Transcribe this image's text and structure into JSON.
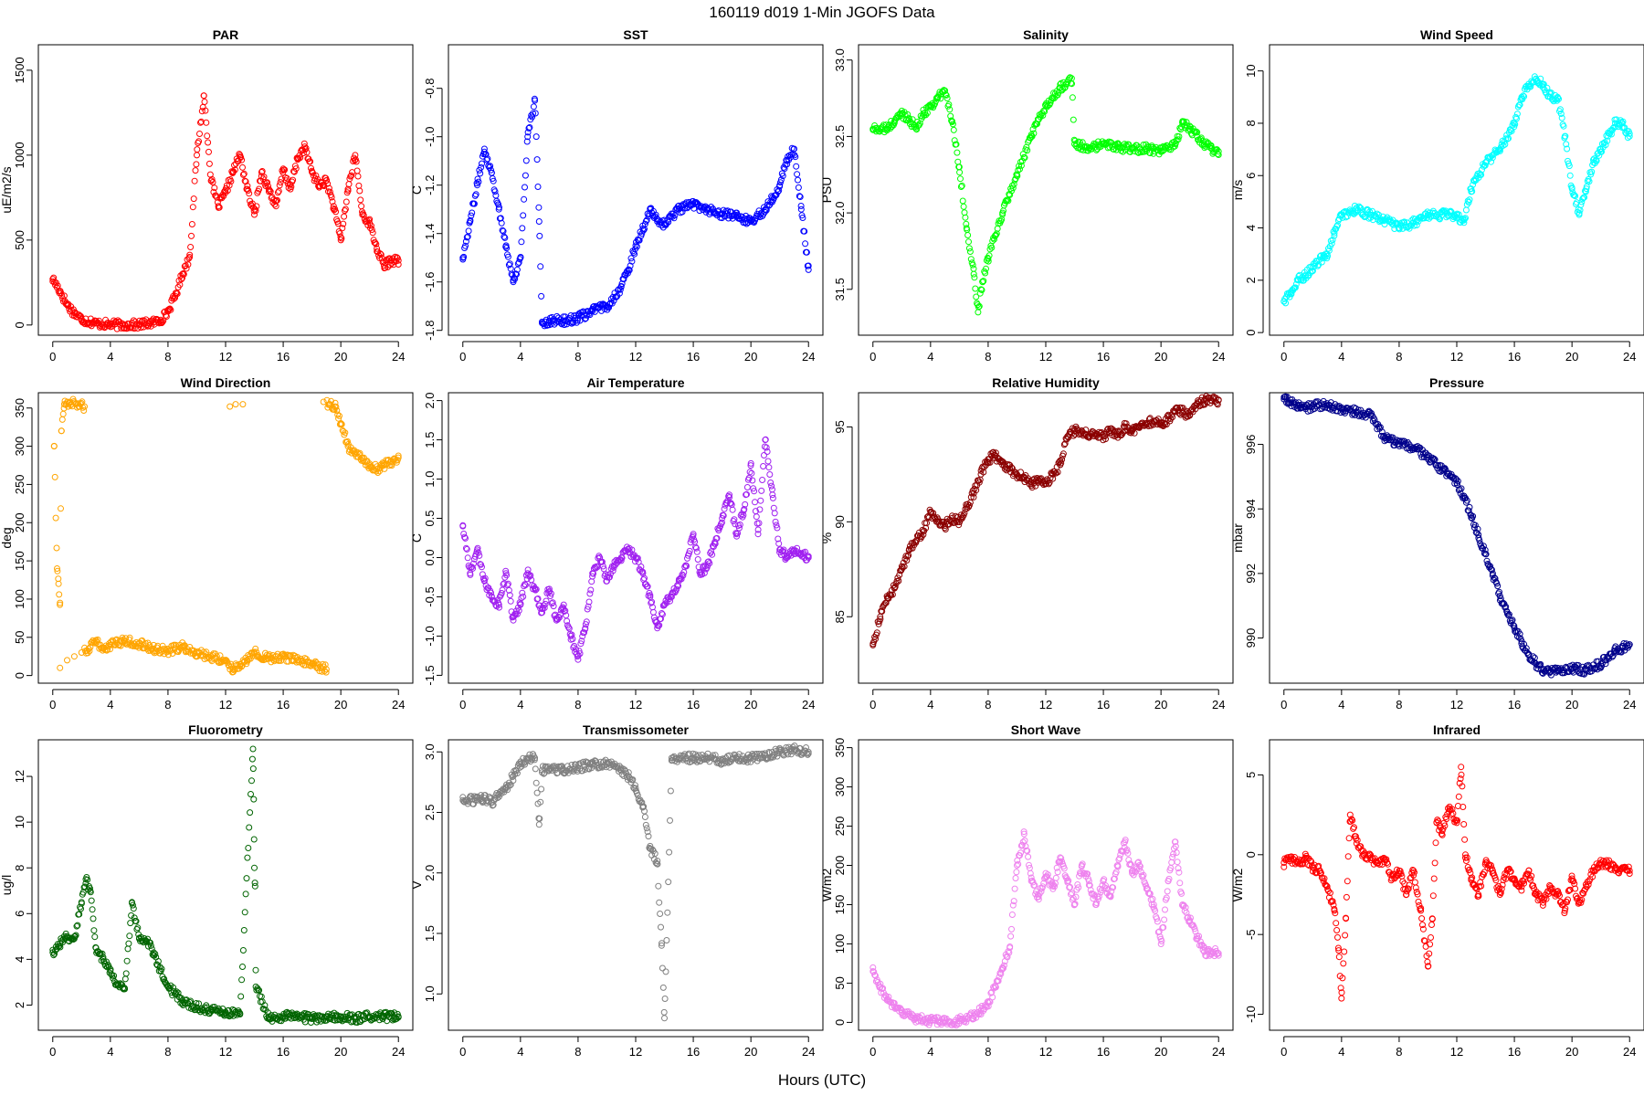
{
  "figure": {
    "title": "160119   d019   1-Min  JGOFS Data",
    "xlabel": "Hours (UTC)"
  },
  "chart_data": [
    {
      "type": "scatter",
      "title": "PAR",
      "ylabel": "uE/m2/s",
      "color": "#ff0000",
      "xlim": [
        -1,
        25
      ],
      "ylim": [
        -60,
        1650
      ],
      "xticks": [
        0,
        4,
        8,
        12,
        16,
        20,
        24
      ],
      "yticks": [
        0,
        500,
        1000,
        1500
      ],
      "x": [
        0,
        0.5,
        1,
        1.5,
        2,
        3,
        4,
        5,
        6,
        7,
        7.5,
        8,
        8.5,
        9,
        9.5,
        10,
        10.5,
        11,
        11.5,
        12,
        12.5,
        13,
        13.5,
        14,
        14.5,
        15,
        15.5,
        16,
        16.5,
        17,
        17.5,
        18,
        18.5,
        19,
        19.5,
        20,
        20.5,
        21,
        21.5,
        22,
        22.5,
        23,
        23.5,
        24
      ],
      "y": [
        270,
        200,
        120,
        70,
        35,
        10,
        2,
        0,
        2,
        15,
        30,
        80,
        170,
        300,
        400,
        1000,
        1350,
        850,
        700,
        780,
        900,
        1000,
        800,
        650,
        900,
        800,
        700,
        920,
        800,
        980,
        1050,
        900,
        820,
        850,
        700,
        500,
        800,
        1000,
        650,
        600,
        450,
        350,
        380,
        380
      ]
    },
    {
      "type": "scatter",
      "title": "SST",
      "ylabel": "C",
      "color": "#0000ff",
      "xlim": [
        -1,
        25
      ],
      "ylim": [
        -1.82,
        -0.62
      ],
      "xticks": [
        0,
        4,
        8,
        12,
        16,
        20,
        24
      ],
      "yticks": [
        -1.8,
        -1.6,
        -1.4,
        -1.2,
        -1.0,
        -0.8
      ],
      "x": [
        0,
        0.5,
        1,
        1.5,
        2,
        2.5,
        3,
        3.5,
        4,
        4.5,
        5,
        5.3,
        5.5,
        6,
        7,
        8,
        9,
        10,
        11,
        11.5,
        12,
        12.5,
        13,
        13.5,
        14,
        15,
        16,
        17,
        18,
        19,
        20,
        21,
        21.5,
        22,
        22.5,
        23,
        23.5,
        24
      ],
      "y": [
        -1.5,
        -1.35,
        -1.2,
        -1.05,
        -1.15,
        -1.3,
        -1.45,
        -1.6,
        -1.5,
        -1.0,
        -0.85,
        -1.35,
        -1.77,
        -1.76,
        -1.76,
        -1.75,
        -1.72,
        -1.7,
        -1.62,
        -1.55,
        -1.45,
        -1.38,
        -1.3,
        -1.35,
        -1.36,
        -1.3,
        -1.28,
        -1.3,
        -1.32,
        -1.33,
        -1.35,
        -1.3,
        -1.25,
        -1.2,
        -1.1,
        -1.05,
        -1.3,
        -1.55
      ]
    },
    {
      "type": "scatter",
      "title": "Salinity",
      "ylabel": "PSU",
      "color": "#00ff00",
      "xlim": [
        -1,
        25
      ],
      "ylim": [
        31.2,
        33.1
      ],
      "xticks": [
        0,
        4,
        8,
        12,
        16,
        20,
        24
      ],
      "yticks": [
        31.5,
        32.0,
        32.5,
        33.0
      ],
      "x": [
        0,
        1,
        1.5,
        2,
        2.5,
        3,
        3.5,
        4,
        4.5,
        5,
        5.5,
        6,
        6.5,
        7,
        7.3,
        7.6,
        8,
        8.5,
        9,
        10,
        11,
        12,
        13,
        13.8,
        14,
        15,
        16,
        17,
        18,
        19,
        20,
        21,
        21.5,
        22,
        22.5,
        23,
        23.5,
        24
      ],
      "y": [
        32.55,
        32.55,
        32.6,
        32.65,
        32.62,
        32.55,
        32.65,
        32.7,
        32.75,
        32.8,
        32.6,
        32.3,
        31.9,
        31.6,
        31.35,
        31.55,
        31.7,
        31.85,
        32.0,
        32.25,
        32.5,
        32.7,
        32.82,
        32.88,
        32.45,
        32.42,
        32.45,
        32.43,
        32.42,
        32.42,
        32.4,
        32.45,
        32.6,
        32.55,
        32.5,
        32.45,
        32.42,
        32.38
      ]
    },
    {
      "type": "scatter",
      "title": "Wind Speed",
      "ylabel": "m/s",
      "color": "#00ffff",
      "xlim": [
        -1,
        25
      ],
      "ylim": [
        -0.1,
        11
      ],
      "xticks": [
        0,
        4,
        8,
        12,
        16,
        20,
        24
      ],
      "yticks": [
        0,
        2,
        4,
        6,
        8,
        10
      ],
      "x": [
        0,
        0.5,
        1,
        1.5,
        2,
        3,
        3.5,
        4,
        5,
        6,
        7,
        8,
        9,
        10,
        11,
        12,
        12.5,
        13,
        14,
        15,
        16,
        16.5,
        17,
        17.5,
        18,
        18.5,
        19,
        19.5,
        20,
        20.5,
        21,
        21.5,
        22,
        22.5,
        23,
        23.5,
        24
      ],
      "y": [
        1.2,
        1.5,
        2.0,
        2.2,
        2.5,
        3.0,
        3.8,
        4.5,
        4.7,
        4.5,
        4.3,
        4.0,
        4.2,
        4.5,
        4.5,
        4.5,
        4.2,
        5.5,
        6.5,
        7.0,
        8.0,
        9.0,
        9.5,
        9.7,
        9.5,
        9.0,
        9.0,
        7.5,
        5.5,
        4.5,
        5.5,
        6.5,
        7.0,
        7.5,
        8.0,
        8.0,
        7.5
      ]
    },
    {
      "type": "scatter",
      "title": "Wind Direction",
      "ylabel": "deg",
      "color": "#ffa500",
      "xlim": [
        -1,
        25
      ],
      "ylim": [
        -10,
        370
      ],
      "xticks": [
        0,
        4,
        8,
        12,
        16,
        20,
        24
      ],
      "yticks": [
        0,
        50,
        100,
        150,
        200,
        250,
        300,
        350
      ],
      "x": [
        0.1,
        0.3,
        0.4,
        0.5,
        0.6,
        0.8,
        1.2,
        2.2,
        0.5,
        1,
        1.5,
        2,
        2.5,
        3,
        3.5,
        4,
        5,
        6,
        7,
        8,
        9,
        10,
        11,
        12,
        12.5,
        13,
        13.5,
        14,
        15,
        16,
        17,
        18,
        19,
        12.3,
        12.7,
        13.2,
        18.8,
        19.2,
        19.6,
        20,
        20.5,
        21,
        21.5,
        22,
        22.5,
        23,
        23.5,
        24
      ],
      "y": [
        300,
        140,
        120,
        95,
        320,
        355,
        358,
        352,
        10,
        20,
        25,
        30,
        35,
        45,
        35,
        40,
        45,
        42,
        35,
        32,
        38,
        30,
        25,
        20,
        8,
        15,
        20,
        30,
        22,
        25,
        20,
        15,
        8,
        352,
        355,
        355,
        358,
        355,
        352,
        330,
        300,
        290,
        285,
        275,
        270,
        275,
        280,
        285
      ]
    },
    {
      "type": "scatter",
      "title": "Air Temperature",
      "ylabel": "C",
      "color": "#a020f0",
      "xlim": [
        -1,
        25
      ],
      "ylim": [
        -1.6,
        2.1
      ],
      "xticks": [
        0,
        4,
        8,
        12,
        16,
        20,
        24
      ],
      "yticks": [
        -1.5,
        -1.0,
        -0.5,
        0.0,
        0.5,
        1.0,
        1.5,
        2.0
      ],
      "x": [
        0,
        0.5,
        1,
        1.5,
        2,
        2.5,
        3,
        3.5,
        4,
        4.5,
        5,
        5.5,
        6,
        6.5,
        7,
        7.5,
        8,
        8.5,
        9,
        9.5,
        10,
        10.5,
        11,
        11.5,
        12,
        12.5,
        13,
        13.5,
        14,
        14.5,
        15,
        15.5,
        16,
        16.5,
        17,
        17.5,
        18,
        18.5,
        19,
        19.5,
        20,
        20.5,
        21,
        21.5,
        22,
        22.5,
        23,
        23.5,
        24
      ],
      "y": [
        0.4,
        -0.2,
        0.1,
        -0.3,
        -0.5,
        -0.6,
        -0.2,
        -0.8,
        -0.6,
        -0.2,
        -0.4,
        -0.7,
        -0.4,
        -0.8,
        -0.6,
        -1.0,
        -1.3,
        -0.9,
        -0.2,
        0.0,
        -0.3,
        -0.1,
        0.0,
        0.1,
        0.0,
        -0.2,
        -0.5,
        -0.9,
        -0.6,
        -0.5,
        -0.3,
        -0.1,
        0.3,
        -0.2,
        -0.1,
        0.2,
        0.5,
        0.8,
        0.3,
        0.6,
        1.2,
        0.3,
        1.5,
        0.8,
        0.1,
        0.0,
        0.1,
        0.05,
        0.0
      ]
    },
    {
      "type": "scatter",
      "title": "Relative Humidity",
      "ylabel": "%",
      "color": "#8b0000",
      "xlim": [
        -1,
        25
      ],
      "ylim": [
        81.5,
        96.8
      ],
      "xticks": [
        0,
        4,
        8,
        12,
        16,
        20,
        24
      ],
      "yticks": [
        85,
        90,
        95
      ],
      "x": [
        0,
        0.5,
        1,
        1.5,
        2,
        2.5,
        3,
        3.5,
        4,
        4.5,
        5,
        5.5,
        6,
        6.5,
        7,
        7.5,
        8,
        8.5,
        9,
        9.5,
        10,
        10.5,
        11,
        11.5,
        12,
        12.5,
        13,
        13.5,
        14,
        14.5,
        15,
        15.5,
        16,
        16.5,
        17,
        17.5,
        18,
        18.5,
        19,
        19.5,
        20,
        20.5,
        21,
        21.5,
        22,
        22.5,
        23,
        23.5,
        24
      ],
      "y": [
        83.5,
        85.0,
        86.0,
        86.5,
        87.5,
        88.5,
        89.0,
        89.5,
        90.5,
        90.0,
        89.8,
        90.2,
        90.0,
        90.8,
        91.5,
        92.5,
        93.3,
        93.5,
        93.0,
        92.8,
        92.5,
        92.3,
        92.0,
        92.2,
        92.0,
        92.5,
        93.0,
        94.5,
        94.8,
        94.8,
        94.5,
        94.6,
        94.5,
        94.8,
        94.6,
        95.0,
        94.8,
        95.0,
        95.2,
        95.3,
        95.2,
        95.4,
        95.8,
        95.8,
        95.6,
        96.2,
        96.4,
        96.4,
        96.4
      ]
    },
    {
      "type": "scatter",
      "title": "Pressure",
      "ylabel": "mbar",
      "color": "#00008b",
      "xlim": [
        -1,
        25
      ],
      "ylim": [
        988.6,
        997.6
      ],
      "xticks": [
        0,
        4,
        8,
        12,
        16,
        20,
        24
      ],
      "yticks": [
        990,
        992,
        994,
        996
      ],
      "x": [
        0,
        0.5,
        1,
        1.5,
        2,
        3,
        4,
        5,
        6,
        7,
        8,
        9,
        10,
        11,
        12,
        12.5,
        13,
        13.5,
        14,
        14.5,
        15,
        15.5,
        16,
        16.5,
        17,
        17.5,
        18,
        18.5,
        19,
        20,
        21,
        22,
        22.5,
        23,
        23.5,
        24
      ],
      "y": [
        997.4,
        997.3,
        997.2,
        997.1,
        997.2,
        997.2,
        997.1,
        997.0,
        996.9,
        996.2,
        996.0,
        995.9,
        995.6,
        995.2,
        994.8,
        994.4,
        993.8,
        993.2,
        992.6,
        992.0,
        991.3,
        990.8,
        990.3,
        989.9,
        989.5,
        989.2,
        989.0,
        988.95,
        989.0,
        989.05,
        989.0,
        989.2,
        989.4,
        989.6,
        989.7,
        989.8
      ]
    },
    {
      "type": "scatter",
      "title": "Fluorometry",
      "ylabel": "ug/l",
      "color": "#006400",
      "xlim": [
        -1,
        25
      ],
      "ylim": [
        0.9,
        13.6
      ],
      "xticks": [
        0,
        4,
        8,
        12,
        16,
        20,
        24
      ],
      "yticks": [
        2,
        4,
        6,
        8,
        10,
        12
      ],
      "x": [
        0,
        0.5,
        1,
        1.5,
        2,
        2.3,
        2.6,
        3,
        3.5,
        4,
        4.5,
        5,
        5.5,
        6,
        6.5,
        7,
        7.5,
        8,
        9,
        10,
        11,
        12,
        13,
        13.9,
        13.95,
        14,
        14.05,
        14.1,
        15,
        16,
        17,
        18,
        19,
        20,
        21,
        22,
        23,
        24
      ],
      "y": [
        4.3,
        4.7,
        5.0,
        4.9,
        6.5,
        7.5,
        7.0,
        4.5,
        4.0,
        3.5,
        2.9,
        2.7,
        6.5,
        4.9,
        4.8,
        4.3,
        3.5,
        2.8,
        2.2,
        1.9,
        1.8,
        1.7,
        1.6,
        13.2,
        11.0,
        8.0,
        7.2,
        2.8,
        1.4,
        1.5,
        1.5,
        1.4,
        1.5,
        1.5,
        1.4,
        1.5,
        1.5,
        1.5
      ]
    },
    {
      "type": "scatter",
      "title": "Transmissometer",
      "ylabel": "V",
      "color": "#808080",
      "xlim": [
        -1,
        25
      ],
      "ylim": [
        0.7,
        3.1
      ],
      "xticks": [
        0,
        4,
        8,
        12,
        16,
        20,
        24
      ],
      "yticks": [
        1.0,
        1.5,
        2.0,
        2.5,
        3.0
      ],
      "x": [
        0,
        1,
        1.5,
        2,
        2.5,
        3,
        3.5,
        4,
        4.5,
        5,
        5.3,
        5.5,
        6,
        7,
        8,
        9,
        10,
        11,
        11.5,
        12,
        12.5,
        13,
        13.5,
        13.8,
        14,
        14.5,
        15,
        16,
        17,
        18,
        19,
        20,
        21,
        22,
        23,
        24
      ],
      "y": [
        2.6,
        2.6,
        2.62,
        2.58,
        2.65,
        2.7,
        2.8,
        2.9,
        2.95,
        2.95,
        2.4,
        2.85,
        2.85,
        2.85,
        2.87,
        2.9,
        2.9,
        2.85,
        2.8,
        2.7,
        2.55,
        2.2,
        2.1,
        1.4,
        0.8,
        2.95,
        2.95,
        2.95,
        2.95,
        2.93,
        2.95,
        2.95,
        2.97,
        3.0,
        3.02,
        3.0
      ]
    },
    {
      "type": "scatter",
      "title": "Short Wave",
      "ylabel": "W/m2",
      "color": "#ee82ee",
      "xlim": [
        -1,
        25
      ],
      "ylim": [
        -10,
        360
      ],
      "xticks": [
        0,
        4,
        8,
        12,
        16,
        20,
        24
      ],
      "yticks": [
        0,
        50,
        100,
        150,
        200,
        250,
        300,
        350
      ],
      "x": [
        0,
        0.5,
        1,
        1.5,
        2,
        3,
        4,
        5,
        6,
        7,
        7.5,
        8,
        8.5,
        9,
        9.5,
        10,
        10.5,
        11,
        11.5,
        12,
        12.5,
        13,
        13.5,
        14,
        14.5,
        15,
        15.5,
        16,
        16.5,
        17,
        17.5,
        18,
        18.5,
        19,
        19.5,
        20,
        20.5,
        21,
        21.5,
        22,
        22.5,
        23,
        23.5,
        24
      ],
      "y": [
        65,
        45,
        30,
        20,
        12,
        5,
        2,
        0,
        2,
        8,
        15,
        25,
        45,
        70,
        95,
        200,
        240,
        180,
        160,
        190,
        170,
        210,
        180,
        150,
        200,
        180,
        150,
        180,
        160,
        200,
        230,
        190,
        200,
        170,
        150,
        100,
        180,
        230,
        150,
        130,
        110,
        90,
        90,
        88
      ]
    },
    {
      "type": "scatter",
      "title": "Infrared",
      "ylabel": "W/m2",
      "color": "#ff0000",
      "xlim": [
        -1,
        25
      ],
      "ylim": [
        -11,
        7.2
      ],
      "xticks": [
        0,
        4,
        8,
        12,
        16,
        20,
        24
      ],
      "yticks": [
        -10,
        -5,
        0,
        5
      ],
      "x": [
        0,
        0.5,
        1,
        1.5,
        2,
        2.5,
        3,
        3.5,
        3.8,
        4,
        4.3,
        4.6,
        5,
        5.5,
        6,
        6.5,
        7,
        7.5,
        8,
        8.5,
        9,
        9.5,
        10,
        10.3,
        10.6,
        11,
        11.5,
        12,
        12.3,
        12.6,
        13,
        13.5,
        14,
        14.5,
        15,
        15.5,
        16,
        16.5,
        17,
        17.5,
        18,
        18.5,
        19,
        19.5,
        20,
        20.5,
        21,
        21.5,
        22,
        22.5,
        23,
        23.5,
        24
      ],
      "y": [
        -0.5,
        -0.3,
        -0.5,
        -0.2,
        -0.8,
        -1.0,
        -2.0,
        -3.5,
        -6.0,
        -9.0,
        -4.0,
        2.5,
        1.0,
        0.0,
        -0.2,
        -0.5,
        -0.3,
        -1.5,
        -1.0,
        -2.5,
        -1.0,
        -3.5,
        -7.0,
        -4.0,
        2.0,
        1.5,
        3.0,
        2.0,
        5.5,
        0.0,
        -1.5,
        -2.5,
        -0.5,
        -1.0,
        -2.5,
        -1.0,
        -1.5,
        -2.0,
        -1.0,
        -2.5,
        -3.0,
        -2.0,
        -2.5,
        -3.5,
        -1.5,
        -3.0,
        -2.0,
        -1.0,
        -0.5,
        -0.5,
        -1.0,
        -0.8,
        -1.0
      ]
    }
  ]
}
